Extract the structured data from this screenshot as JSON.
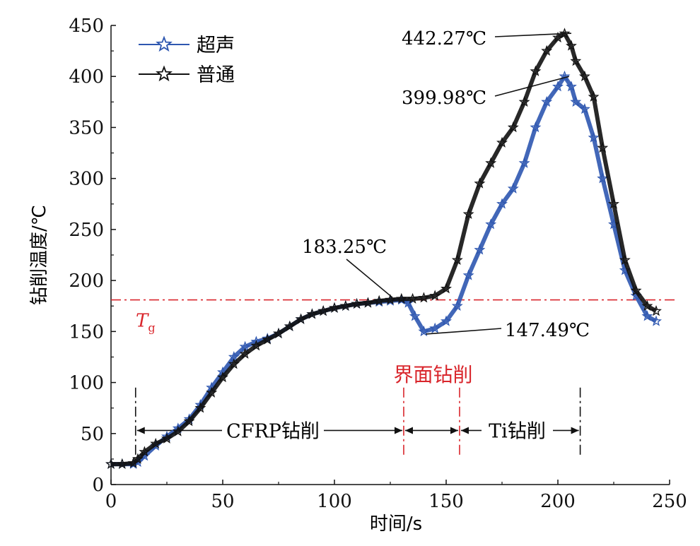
{
  "chart_data": {
    "type": "line",
    "xlabel": "时间/s",
    "ylabel": "钻削温度/℃",
    "xlim": [
      0,
      250
    ],
    "ylim": [
      0,
      450
    ],
    "x_ticks": [
      0,
      50,
      100,
      150,
      200,
      250
    ],
    "y_ticks": [
      0,
      50,
      100,
      150,
      200,
      250,
      300,
      350,
      400,
      450
    ],
    "grid": false,
    "legend": "top-left",
    "series": [
      {
        "name": "超声",
        "color": "#2e57b0",
        "marker": "star",
        "x": [
          0,
          5,
          10,
          12,
          15,
          20,
          25,
          30,
          35,
          40,
          45,
          50,
          55,
          60,
          65,
          70,
          75,
          80,
          85,
          90,
          95,
          100,
          105,
          110,
          115,
          120,
          125,
          130,
          133,
          136,
          140,
          145,
          150,
          155,
          160,
          165,
          170,
          175,
          180,
          185,
          190,
          195,
          200,
          203,
          206,
          208,
          212,
          216,
          220,
          225,
          230,
          235,
          240,
          244
        ],
        "y": [
          20,
          20,
          20,
          22,
          28,
          38,
          47,
          55,
          64,
          78,
          95,
          110,
          125,
          135,
          140,
          143,
          148,
          155,
          162,
          167,
          170,
          173,
          175,
          177,
          178,
          179,
          180,
          181,
          178,
          165,
          150,
          153,
          160,
          175,
          205,
          230,
          255,
          275,
          290,
          315,
          350,
          375,
          390,
          400,
          390,
          375,
          368,
          340,
          300,
          255,
          210,
          185,
          165,
          160
        ]
      },
      {
        "name": "普通",
        "color": "#111111",
        "marker": "star",
        "x": [
          0,
          5,
          10,
          12,
          15,
          20,
          25,
          30,
          35,
          40,
          45,
          50,
          55,
          60,
          65,
          70,
          75,
          80,
          85,
          90,
          95,
          100,
          105,
          110,
          115,
          120,
          125,
          130,
          135,
          140,
          145,
          150,
          155,
          160,
          165,
          170,
          175,
          180,
          185,
          190,
          195,
          200,
          203,
          206,
          208,
          212,
          216,
          220,
          225,
          230,
          235,
          240,
          244
        ],
        "y": [
          20,
          20,
          21,
          25,
          32,
          40,
          45,
          52,
          62,
          75,
          90,
          105,
          118,
          128,
          136,
          142,
          148,
          155,
          162,
          167,
          170,
          173,
          175,
          177,
          178,
          180,
          181,
          182,
          182,
          183,
          185,
          192,
          220,
          265,
          295,
          315,
          335,
          350,
          375,
          405,
          425,
          438,
          442,
          430,
          415,
          400,
          380,
          330,
          275,
          220,
          190,
          175,
          170
        ]
      }
    ],
    "reference_lines": [
      {
        "axis": "y",
        "value": 181,
        "label_main": "T",
        "label_sub": "g",
        "color": "#d9262c"
      }
    ],
    "annotations": [
      {
        "text": "442.27℃",
        "x": 206,
        "y": 442.27
      },
      {
        "text": "399.98℃",
        "x": 205,
        "y": 399.98
      },
      {
        "text": "183.25℃",
        "x": 126,
        "y": 183.25
      },
      {
        "text": "147.49℃",
        "x": 141,
        "y": 147.49
      }
    ],
    "regions": [
      {
        "label": "CFRP钻削",
        "x_start": 11,
        "x_end": 131
      },
      {
        "label": "",
        "x_start": 131,
        "x_end": 156
      },
      {
        "label": "Ti钻削",
        "x_start": 156,
        "x_end": 210
      }
    ],
    "region_title": "界面钻削",
    "region_boundaries": [
      {
        "x": 11,
        "color": "#111111"
      },
      {
        "x": 131,
        "color": "#d9262c"
      },
      {
        "x": 156,
        "color": "#d9262c"
      },
      {
        "x": 210,
        "color": "#111111"
      }
    ]
  }
}
